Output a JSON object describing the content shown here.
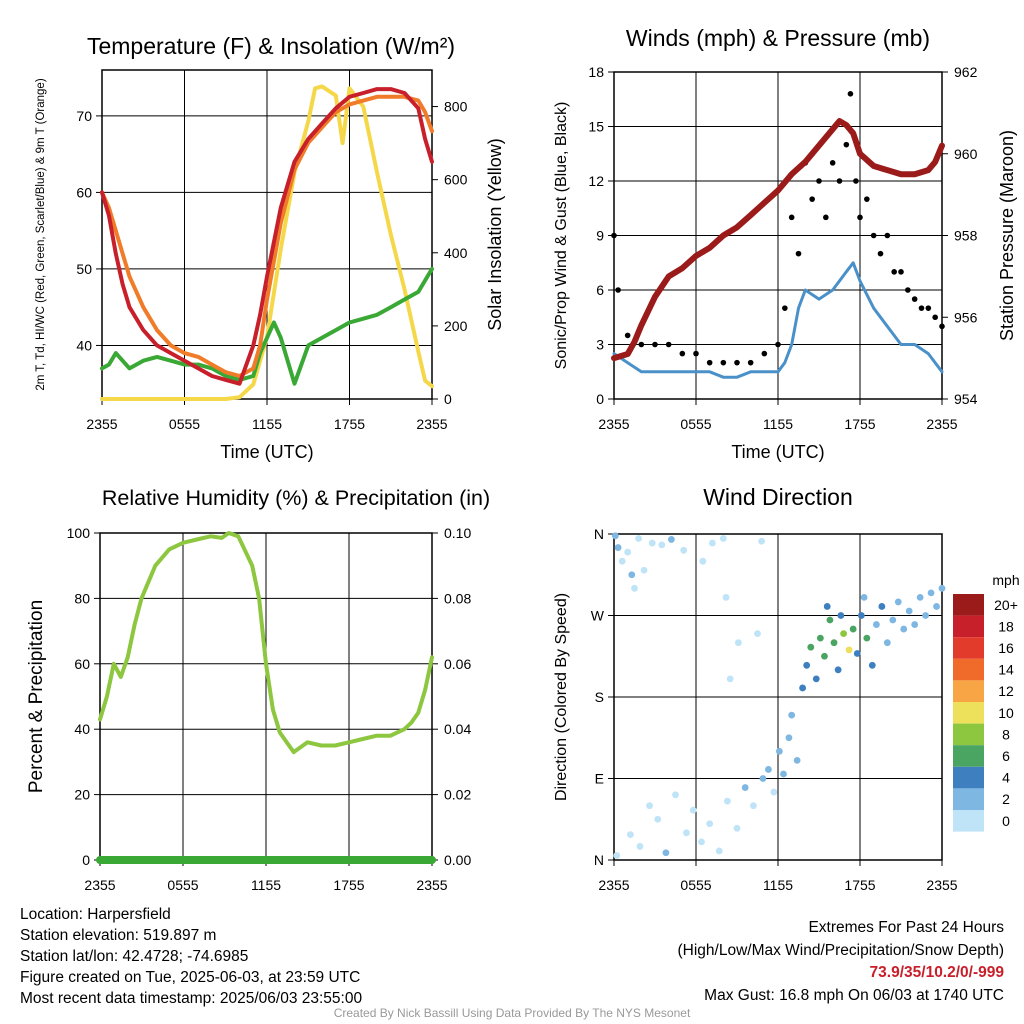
{
  "chart_data": [
    {
      "type": "line",
      "title": "Temperature (F) & Insolation (W/m²)",
      "xlabel": "Time (UTC)",
      "ylabel_left": "2m T, Td, HI/WC (Red, Green, Scarlet/Blue) & 9m T (Orange)",
      "ylabel_right": "Solar Insolation (Yellow)",
      "x_ticks": [
        "2355",
        "0555",
        "1155",
        "1755",
        "2355"
      ],
      "y_ticks_left": [
        40,
        50,
        60,
        70
      ],
      "y_ticks_right": [
        0,
        200,
        400,
        600,
        800
      ],
      "ylim_left": [
        33,
        76
      ],
      "ylim_right": [
        0,
        900
      ],
      "xlim_hours": [
        0,
        24
      ],
      "grid": true,
      "series": [
        {
          "name": "2m T",
          "color": "#c8202b",
          "axis": "left",
          "x": [
            0,
            0.5,
            1,
            1.5,
            2,
            3,
            4,
            5,
            6,
            7,
            8,
            9,
            10,
            11,
            11.5,
            12,
            13,
            14,
            15,
            16,
            17,
            18,
            19,
            20,
            21,
            22,
            23,
            23.5,
            24
          ],
          "y": [
            60,
            57,
            52,
            48,
            45,
            42,
            40,
            39,
            38,
            37,
            36,
            35.5,
            35,
            40,
            44,
            49,
            58,
            64,
            67,
            69,
            71,
            72.5,
            73,
            73.5,
            73.5,
            73,
            71,
            67,
            64
          ]
        },
        {
          "name": "9m T",
          "color": "#f07c2a",
          "axis": "left",
          "x": [
            0,
            0.5,
            1,
            1.5,
            2,
            3,
            4,
            5,
            6,
            7,
            8,
            9,
            10,
            11,
            11.5,
            12,
            13,
            14,
            15,
            16,
            17,
            18,
            19,
            20,
            21,
            22,
            23,
            23.5,
            24
          ],
          "y": [
            60,
            58,
            55,
            52,
            49,
            45,
            42,
            40,
            39,
            38.5,
            37.5,
            36.5,
            36,
            37,
            40,
            46,
            56,
            63,
            66.5,
            68.5,
            70.5,
            71.5,
            72,
            72.5,
            72.5,
            72.5,
            72,
            70.5,
            68
          ]
        },
        {
          "name": "Td",
          "color": "#3aa835",
          "axis": "left",
          "x": [
            0,
            0.5,
            1,
            1.5,
            2,
            3,
            4,
            5,
            6,
            7,
            8,
            9,
            10,
            11,
            11.5,
            12,
            12.5,
            13,
            13.5,
            14,
            15,
            16,
            17,
            18,
            19,
            20,
            21,
            22,
            23,
            24
          ],
          "y": [
            37,
            37.5,
            39,
            38,
            37,
            38,
            38.5,
            38,
            37.5,
            37.5,
            37,
            36,
            35.5,
            36,
            39,
            41,
            43,
            41,
            38,
            35,
            40,
            41,
            42,
            43,
            43.5,
            44,
            45,
            46,
            47,
            50
          ]
        },
        {
          "name": "Solar Insolation",
          "color": "#f5d84a",
          "axis": "right",
          "x": [
            0,
            8,
            9,
            10,
            11,
            12,
            13,
            14,
            15,
            15.5,
            16,
            17,
            17.5,
            18,
            19,
            20,
            21,
            22,
            23,
            23.5,
            24
          ],
          "y": [
            0,
            0,
            0,
            5,
            40,
            170,
            410,
            620,
            760,
            850,
            855,
            830,
            700,
            850,
            800,
            620,
            450,
            300,
            130,
            50,
            35
          ]
        }
      ]
    },
    {
      "type": "line",
      "title": "Winds (mph) & Pressure (mb)",
      "xlabel": "Time (UTC)",
      "ylabel_left": "Sonic/Prop Wind & Gust (Blue, Black)",
      "ylabel_right": "Station Pressure (Maroon)",
      "x_ticks": [
        "2355",
        "0555",
        "1155",
        "1755",
        "2355"
      ],
      "y_ticks_left": [
        0,
        3,
        6,
        9,
        12,
        15,
        18
      ],
      "y_ticks_right": [
        954,
        956,
        958,
        960,
        962
      ],
      "ylim_left": [
        0,
        18
      ],
      "ylim_right": [
        954,
        962
      ],
      "xlim_hours": [
        0,
        24
      ],
      "grid": true,
      "series": [
        {
          "name": "Wind",
          "color": "#4a90c9",
          "axis": "left",
          "x": [
            0,
            1,
            2,
            3,
            4,
            5,
            6,
            7,
            8,
            9,
            10,
            11,
            12,
            12.5,
            13,
            13.5,
            14,
            15,
            16,
            17,
            17.5,
            18,
            19,
            20,
            21,
            22,
            23,
            24
          ],
          "y": [
            2.5,
            2,
            1.5,
            1.5,
            1.5,
            1.5,
            1.5,
            1.5,
            1.2,
            1.2,
            1.5,
            1.5,
            1.5,
            2,
            3,
            5,
            6,
            5.5,
            6,
            7,
            7.5,
            6.5,
            5,
            4,
            3,
            3,
            2.5,
            1.5
          ]
        },
        {
          "name": "Gust",
          "color": "#000000",
          "axis": "left",
          "x": [
            0,
            0.3,
            1,
            2,
            3,
            4,
            5,
            6,
            7,
            8,
            9,
            10,
            11,
            12,
            12.5,
            13,
            13.5,
            14,
            14.5,
            15,
            15.5,
            16,
            16.5,
            17,
            17.3,
            17.7,
            18,
            18.5,
            19,
            19.5,
            20,
            20.5,
            21,
            21.5,
            22,
            22.5,
            23,
            23.5,
            24
          ],
          "y": [
            9,
            6,
            3.5,
            3,
            3,
            3,
            2.5,
            2.5,
            2,
            2,
            2,
            2,
            2.5,
            3,
            5,
            10,
            8,
            13,
            11,
            12,
            10,
            13,
            12,
            14,
            16.8,
            12,
            10,
            11,
            9,
            8,
            9,
            7,
            7,
            6,
            5.5,
            5,
            5,
            4.5,
            4
          ]
        },
        {
          "name": "Pressure",
          "color": "#9b1b1b",
          "axis": "right",
          "x": [
            0,
            1,
            1.5,
            2,
            3,
            4,
            5,
            6,
            7,
            8,
            9,
            10,
            11,
            12,
            13,
            14,
            15,
            16,
            16.5,
            17,
            17.5,
            18,
            19,
            20,
            21,
            22,
            23,
            23.5,
            24
          ],
          "y": [
            955,
            955.1,
            955.4,
            955.8,
            956.5,
            957,
            957.2,
            957.5,
            957.7,
            958,
            958.2,
            958.5,
            958.8,
            959.1,
            959.5,
            959.8,
            960.2,
            960.6,
            960.8,
            960.7,
            960.5,
            960,
            959.7,
            959.6,
            959.5,
            959.5,
            959.6,
            959.8,
            960.2
          ]
        }
      ]
    },
    {
      "type": "line",
      "title": "Relative Humidity (%) & Precipitation (in)",
      "xlabel": "",
      "ylabel_left": "Percent & Precipitation",
      "x_ticks": [
        "2355",
        "0555",
        "1155",
        "1755",
        "2355"
      ],
      "y_ticks_left": [
        0,
        20,
        40,
        60,
        80,
        100
      ],
      "y_ticks_right": [
        "0.00",
        "0.02",
        "0.04",
        "0.06",
        "0.08",
        "0.10"
      ],
      "ylim_left": [
        0,
        100
      ],
      "ylim_right": [
        0,
        0.1
      ],
      "xlim_hours": [
        0,
        24
      ],
      "grid": true,
      "series": [
        {
          "name": "Relative Humidity",
          "color": "#8dc63f",
          "axis": "left",
          "x": [
            0,
            0.5,
            1,
            1.5,
            2,
            2.5,
            3,
            4,
            5,
            6,
            7,
            8,
            8.8,
            9.3,
            10,
            11,
            11.5,
            12,
            12.5,
            13,
            14,
            15,
            16,
            17,
            18,
            19,
            20,
            21,
            22,
            22.5,
            23,
            23.5,
            24
          ],
          "y": [
            43,
            50,
            60,
            56,
            62,
            72,
            80,
            90,
            95,
            97,
            98,
            99,
            98.5,
            100,
            99,
            90,
            80,
            60,
            46,
            39,
            33,
            36,
            35,
            35,
            36,
            37,
            38,
            38,
            40,
            42,
            45,
            52,
            62
          ]
        },
        {
          "name": "Precipitation",
          "color": "#3aa835",
          "axis": "right",
          "x": [
            0,
            24
          ],
          "y": [
            0,
            0
          ]
        }
      ]
    },
    {
      "type": "scatter",
      "title": "Wind Direction",
      "ylabel_left": "Direction (Colored By Speed)",
      "x_ticks": [
        "2355",
        "0555",
        "1155",
        "1755",
        "2355"
      ],
      "y_ticks_left": [
        "N",
        "E",
        "S",
        "W",
        "N"
      ],
      "ylim_degrees": [
        0,
        360
      ],
      "xlim_hours": [
        0,
        24
      ],
      "grid": true,
      "colorbar": {
        "title": "mph",
        "labels": [
          "20+",
          "18",
          "16",
          "14",
          "12",
          "10",
          "8",
          "6",
          "4",
          "2",
          "0"
        ],
        "colors": [
          "#9b1b1b",
          "#c8202b",
          "#e23a2b",
          "#f06a2a",
          "#f8a545",
          "#ede05a",
          "#8dc63f",
          "#4aa562",
          "#3d7fbf",
          "#7fb7e3",
          "#bfe3f7"
        ]
      },
      "points": [
        {
          "x": 0.1,
          "y": 358,
          "s": 2
        },
        {
          "x": 0.3,
          "y": 345,
          "s": 2
        },
        {
          "x": 0.6,
          "y": 330,
          "s": 1
        },
        {
          "x": 1.0,
          "y": 340,
          "s": 1
        },
        {
          "x": 1.3,
          "y": 315,
          "s": 2
        },
        {
          "x": 1.5,
          "y": 300,
          "s": 1
        },
        {
          "x": 1.8,
          "y": 355,
          "s": 0
        },
        {
          "x": 2.2,
          "y": 320,
          "s": 1
        },
        {
          "x": 2.8,
          "y": 350,
          "s": 1
        },
        {
          "x": 3.5,
          "y": 348,
          "s": 0
        },
        {
          "x": 4.2,
          "y": 354,
          "s": 2
        },
        {
          "x": 5.1,
          "y": 342,
          "s": 0
        },
        {
          "x": 6.5,
          "y": 330,
          "s": 1
        },
        {
          "x": 7.2,
          "y": 350,
          "s": 0
        },
        {
          "x": 8.0,
          "y": 355,
          "s": 0
        },
        {
          "x": 10.8,
          "y": 352,
          "s": 0
        },
        {
          "x": 8.2,
          "y": 290,
          "s": 1
        },
        {
          "x": 9.1,
          "y": 240,
          "s": 1
        },
        {
          "x": 8.5,
          "y": 200,
          "s": 1
        },
        {
          "x": 10.5,
          "y": 250,
          "s": 1
        },
        {
          "x": 0.2,
          "y": 5,
          "s": 1
        },
        {
          "x": 1.2,
          "y": 28,
          "s": 1
        },
        {
          "x": 1.9,
          "y": 15,
          "s": 1
        },
        {
          "x": 2.6,
          "y": 60,
          "s": 0
        },
        {
          "x": 3.2,
          "y": 45,
          "s": 1
        },
        {
          "x": 3.8,
          "y": 8,
          "s": 3
        },
        {
          "x": 4.5,
          "y": 72,
          "s": 0
        },
        {
          "x": 5.3,
          "y": 30,
          "s": 1
        },
        {
          "x": 5.8,
          "y": 55,
          "s": 0
        },
        {
          "x": 6.4,
          "y": 20,
          "s": 1
        },
        {
          "x": 7.0,
          "y": 40,
          "s": 0
        },
        {
          "x": 7.7,
          "y": 10,
          "s": 1
        },
        {
          "x": 8.3,
          "y": 65,
          "s": 1
        },
        {
          "x": 9.0,
          "y": 35,
          "s": 0
        },
        {
          "x": 9.6,
          "y": 80,
          "s": 2
        },
        {
          "x": 10.2,
          "y": 60,
          "s": 1
        },
        {
          "x": 10.9,
          "y": 90,
          "s": 2
        },
        {
          "x": 11.3,
          "y": 100,
          "s": 2
        },
        {
          "x": 11.7,
          "y": 75,
          "s": 1
        },
        {
          "x": 12.1,
          "y": 120,
          "s": 3
        },
        {
          "x": 12.4,
          "y": 95,
          "s": 3
        },
        {
          "x": 12.8,
          "y": 135,
          "s": 2
        },
        {
          "x": 13.0,
          "y": 160,
          "s": 3
        },
        {
          "x": 13.4,
          "y": 110,
          "s": 3
        },
        {
          "x": 13.8,
          "y": 190,
          "s": 4
        },
        {
          "x": 14.1,
          "y": 215,
          "s": 5
        },
        {
          "x": 14.4,
          "y": 235,
          "s": 6
        },
        {
          "x": 14.8,
          "y": 200,
          "s": 5
        },
        {
          "x": 15.1,
          "y": 245,
          "s": 7
        },
        {
          "x": 15.4,
          "y": 225,
          "s": 6
        },
        {
          "x": 15.8,
          "y": 265,
          "s": 6
        },
        {
          "x": 16.1,
          "y": 240,
          "s": 7
        },
        {
          "x": 16.4,
          "y": 210,
          "s": 5
        },
        {
          "x": 16.8,
          "y": 250,
          "s": 8
        },
        {
          "x": 17.2,
          "y": 232,
          "s": 10
        },
        {
          "x": 17.5,
          "y": 255,
          "s": 6
        },
        {
          "x": 17.8,
          "y": 228,
          "s": 5
        },
        {
          "x": 18.1,
          "y": 270,
          "s": 4
        },
        {
          "x": 18.5,
          "y": 245,
          "s": 6
        },
        {
          "x": 18.9,
          "y": 215,
          "s": 4
        },
        {
          "x": 19.2,
          "y": 260,
          "s": 3
        },
        {
          "x": 19.6,
          "y": 280,
          "s": 4
        },
        {
          "x": 20.0,
          "y": 240,
          "s": 3
        },
        {
          "x": 20.4,
          "y": 265,
          "s": 3
        },
        {
          "x": 20.8,
          "y": 285,
          "s": 2
        },
        {
          "x": 21.2,
          "y": 255,
          "s": 3
        },
        {
          "x": 21.6,
          "y": 275,
          "s": 2
        },
        {
          "x": 22.0,
          "y": 260,
          "s": 3
        },
        {
          "x": 22.4,
          "y": 290,
          "s": 2
        },
        {
          "x": 22.8,
          "y": 270,
          "s": 2
        },
        {
          "x": 23.2,
          "y": 295,
          "s": 2
        },
        {
          "x": 23.6,
          "y": 280,
          "s": 2
        },
        {
          "x": 24.0,
          "y": 300,
          "s": 3
        },
        {
          "x": 15.6,
          "y": 280,
          "s": 4
        },
        {
          "x": 16.6,
          "y": 270,
          "s": 5
        },
        {
          "x": 18.3,
          "y": 290,
          "s": 3
        }
      ]
    }
  ],
  "footer": {
    "location": "Location: Harpersfield",
    "elevation": "Station elevation: 519.897 m",
    "latlon": "Station lat/lon: 42.4728; -74.6985",
    "created": "Figure created on Tue, 2025-06-03, at 23:59 UTC",
    "recent": "Most recent data timestamp: 2025/06/03 23:55:00",
    "extremes_title": "Extremes For Past 24 Hours",
    "extremes_subtitle": "(High/Low/Max Wind/Precipitation/Snow Depth)",
    "extremes_values": "73.9/35/10.2/0/-999",
    "max_gust": "Max Gust: 16.8 mph On 06/03 at 1740 UTC",
    "credit": "Created By Nick Bassill Using Data Provided By The NYS Mesonet"
  }
}
